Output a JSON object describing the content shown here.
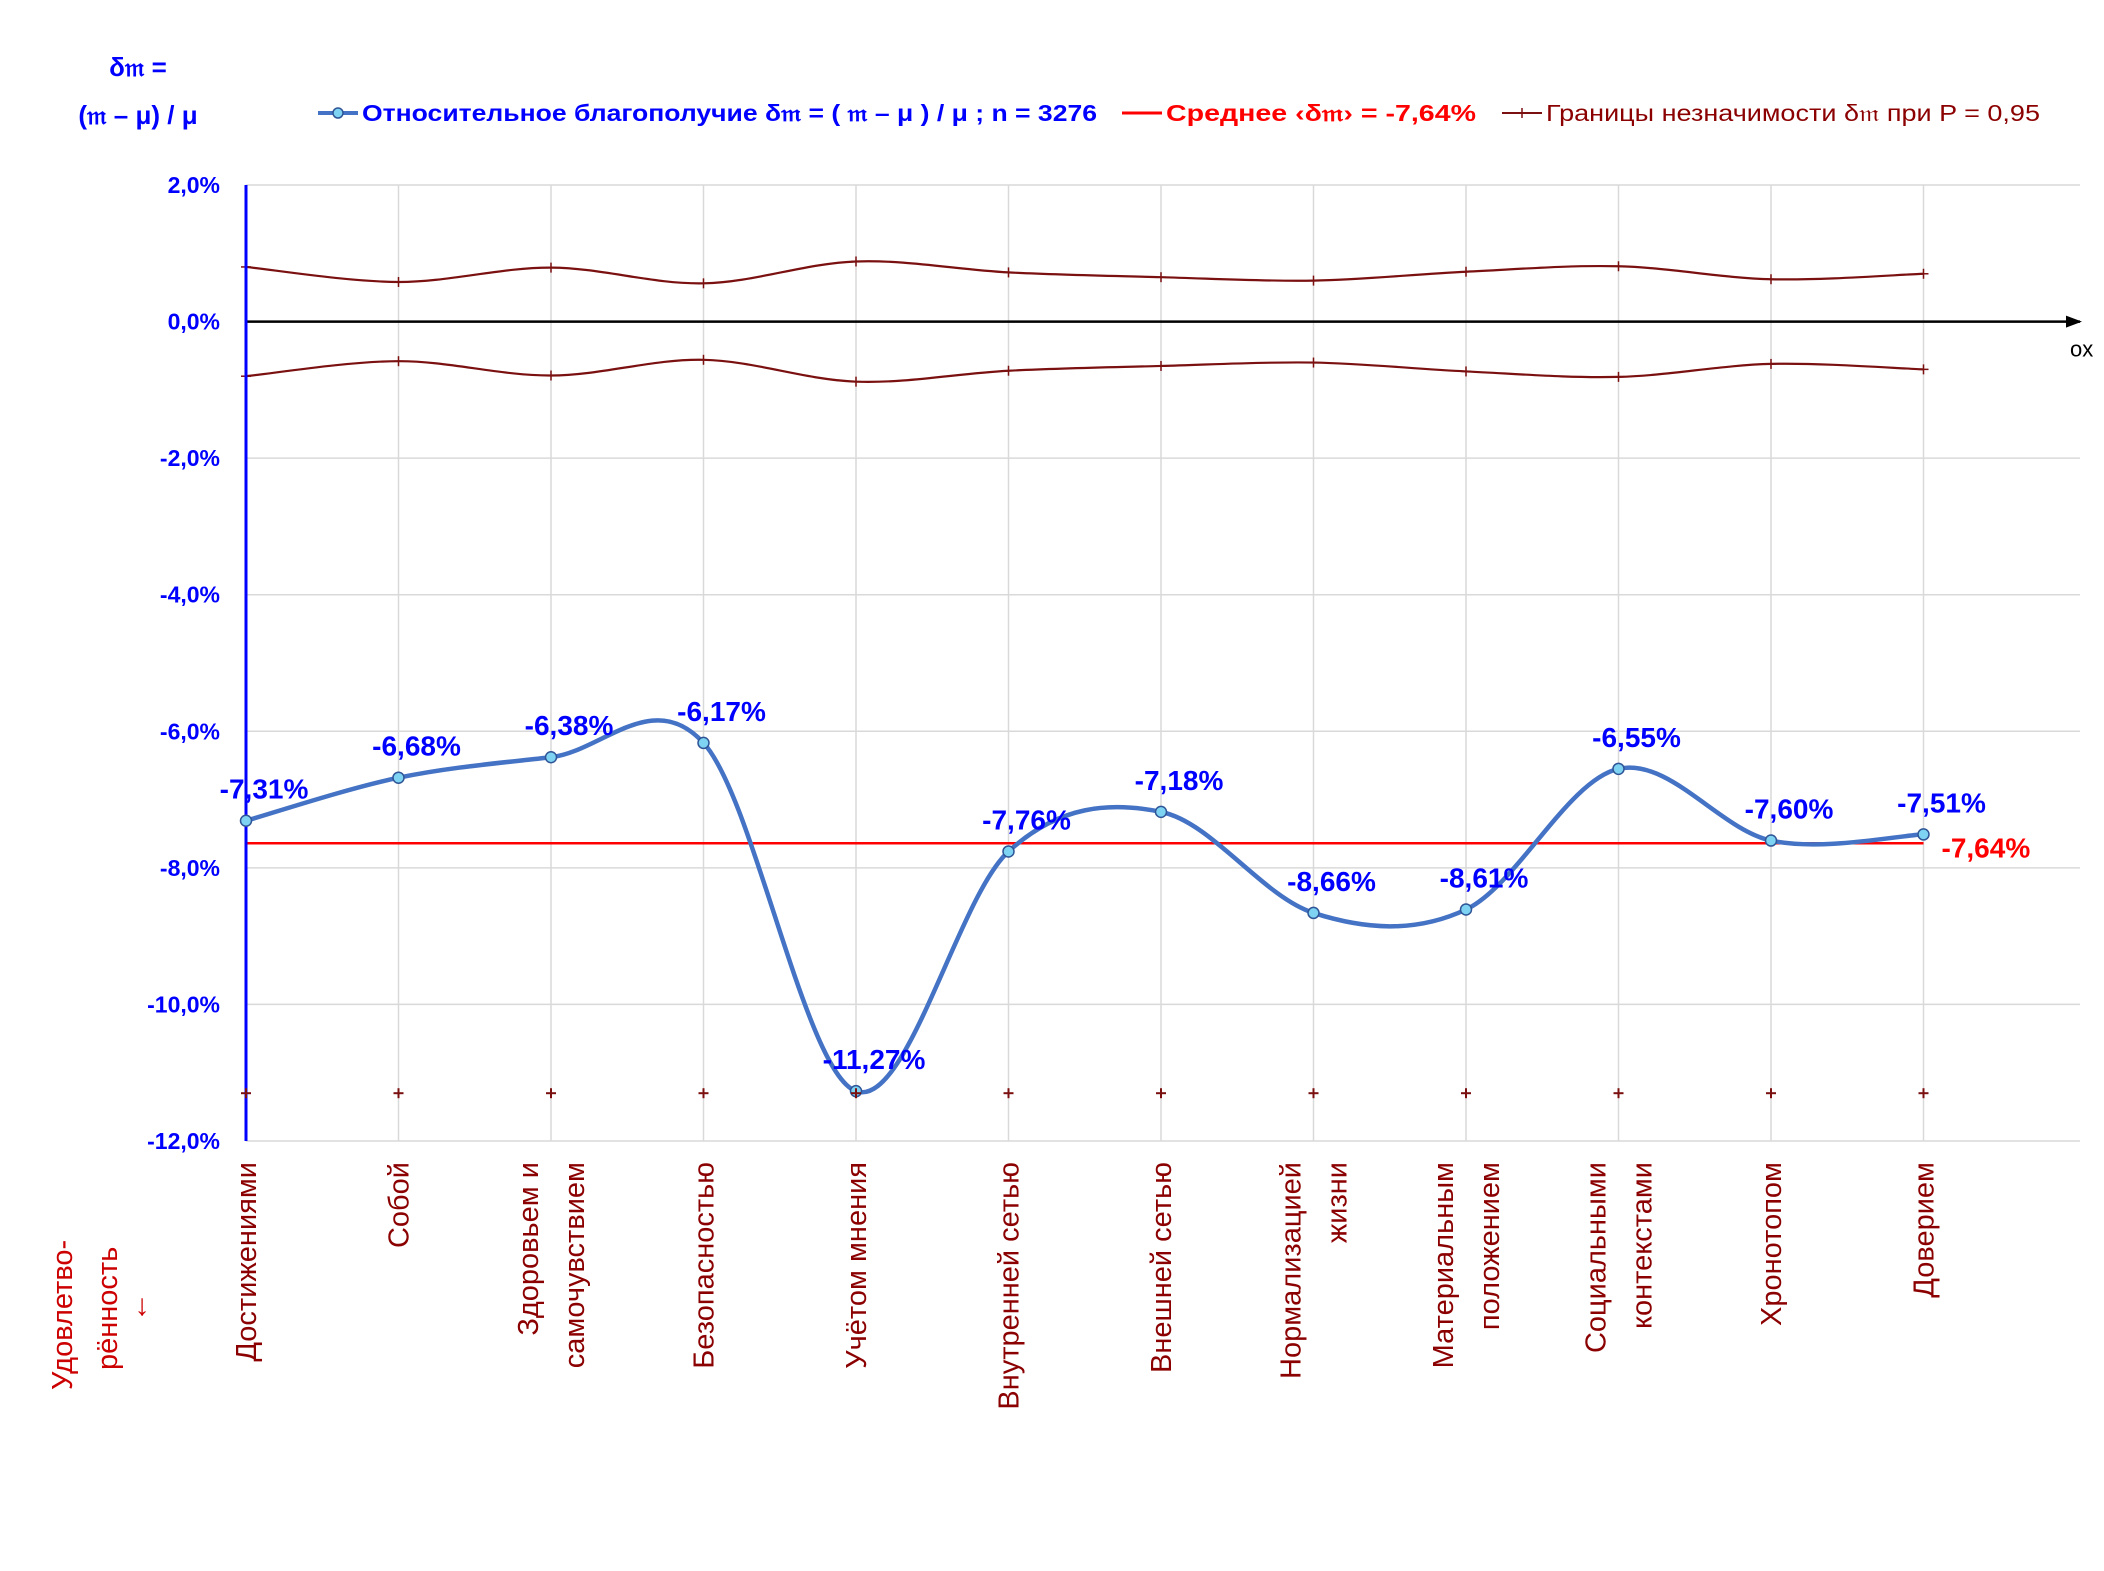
{
  "y_axis_title": {
    "line1": "δ𝔪 =",
    "line2": "(𝔪 – μ) / μ"
  },
  "x_axis_title": "ox",
  "row_label": {
    "line1": "Удовлетво-",
    "line2": "рённость",
    "arrow": "↓"
  },
  "legend": {
    "series": "Относительное благополучие δ𝔪 = ( 𝔪 – μ ) / μ ; n = 3276",
    "mean": "Среднее ‹δ𝔪› = -7,64%",
    "bounds": "Границы незначимости δ𝔪 при P = 0,95"
  },
  "colors": {
    "series": "#4472C4",
    "marker_fill": "#7FD3F2",
    "mean": "#FF0000",
    "bounds": "#7B1010",
    "axis_blue": "#0000FF",
    "category_text": "#8B0000",
    "grid": "#D9D9D9"
  },
  "chart_data": {
    "type": "line",
    "categories": [
      [
        "Достижениями"
      ],
      [
        "Собой"
      ],
      [
        "Здоровьем и",
        "самочувствием"
      ],
      [
        "Безопасностью"
      ],
      [
        "Учётом мнения"
      ],
      [
        "Внутренней сетью"
      ],
      [
        "Внешней сетью"
      ],
      [
        "Нормализацией",
        "жизни"
      ],
      [
        "Материальным",
        "положением"
      ],
      [
        "Социальными",
        "контекстами"
      ],
      [
        "Хронотопом"
      ],
      [
        "Доверием"
      ]
    ],
    "ylim": [
      -12,
      2
    ],
    "yticks": [
      2,
      0,
      -2,
      -4,
      -6,
      -8,
      -10,
      -12
    ],
    "ytick_labels": [
      "2,0%",
      "0,0%",
      "-2,0%",
      "-4,0%",
      "-6,0%",
      "-8,0%",
      "-10,0%",
      "-12,0%"
    ],
    "series": [
      {
        "name": "Относительное благополучие δ𝔪 = ( 𝔪 – μ ) / μ ; n = 3276",
        "values": [
          -7.31,
          -6.68,
          -6.38,
          -6.17,
          -11.27,
          -7.76,
          -7.18,
          -8.66,
          -8.61,
          -6.55,
          -7.6,
          -7.51
        ],
        "labels": [
          "-7,31%",
          "-6,68%",
          "-6,38%",
          "-6,17%",
          "-11,27%",
          "-7,76%",
          "-7,18%",
          "-8,66%",
          "-8,61%",
          "-6,55%",
          "-7,60%",
          "-7,51%"
        ]
      },
      {
        "name": "Границы незначимости δ𝔪 при P = 0,95",
        "values": [
          0.8,
          0.58,
          0.79,
          0.56,
          0.88,
          0.72,
          0.65,
          0.6,
          0.73,
          0.81,
          0.62,
          0.7
        ]
      },
      {
        "name": "Границы незначимости δ𝔪 при P = 0,95",
        "values": [
          -0.8,
          -0.58,
          -0.79,
          -0.56,
          -0.88,
          -0.72,
          -0.65,
          -0.6,
          -0.73,
          -0.81,
          -0.62,
          -0.7
        ]
      }
    ],
    "mean": -7.64,
    "mean_label": "-7,64%",
    "bottom_marker_value": -11.3,
    "grid": true,
    "legend_position": "top"
  }
}
